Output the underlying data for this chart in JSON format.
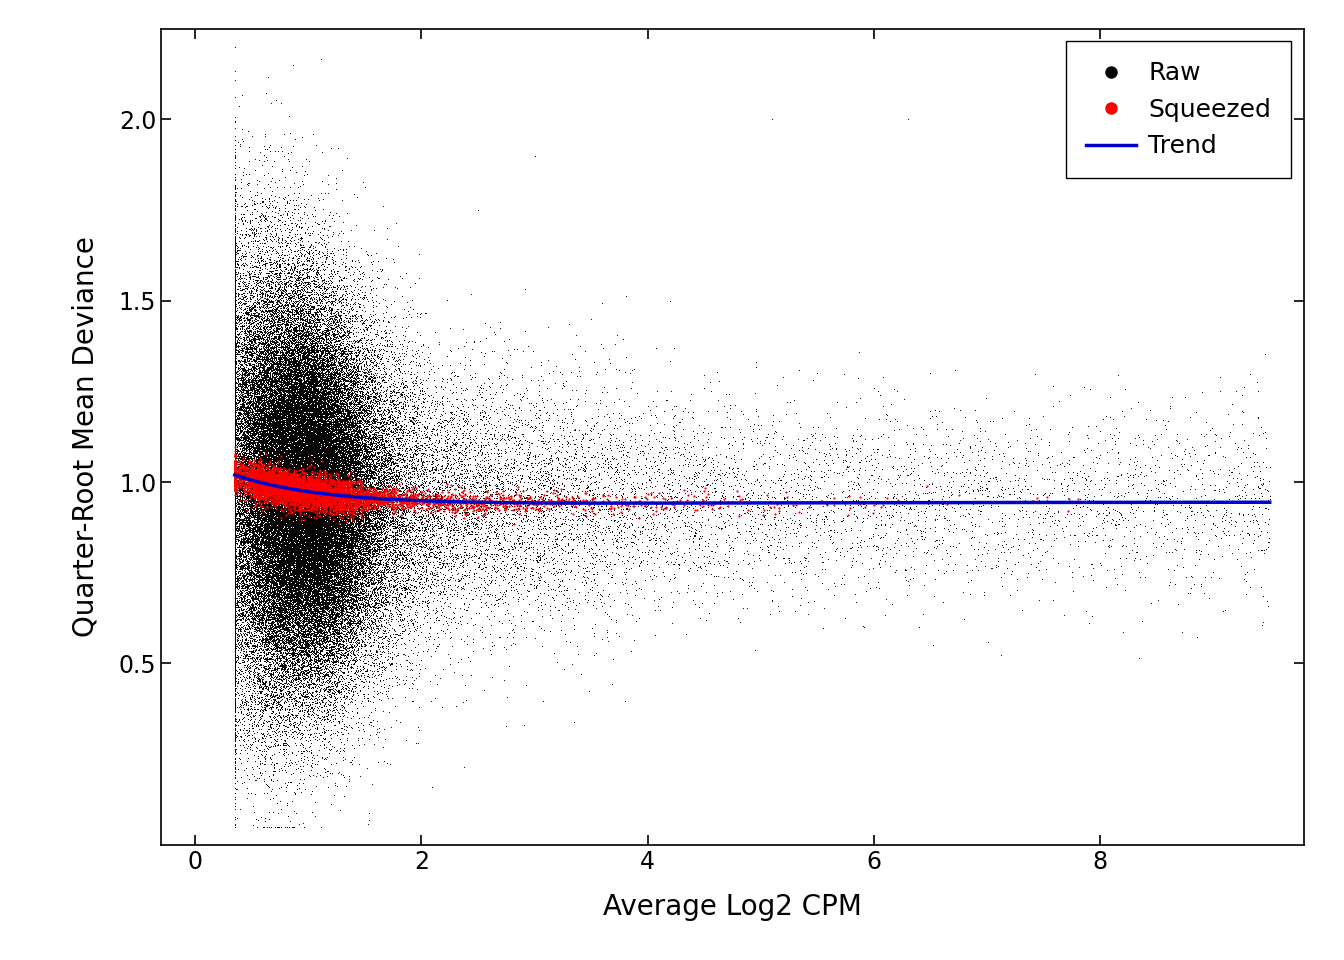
{
  "title": "",
  "xlabel": "Average Log2 CPM",
  "ylabel": "Quarter-Root Mean Deviance",
  "xlim": [
    -0.3,
    9.8
  ],
  "ylim": [
    0.0,
    2.25
  ],
  "xticks": [
    0,
    2,
    4,
    6,
    8
  ],
  "yticks": [
    0.5,
    1.0,
    1.5,
    2.0
  ],
  "background_color": "#ffffff",
  "raw_color": "#000000",
  "squeezed_color": "#ff0000",
  "trend_color": "#0000cc",
  "legend_labels": [
    "Raw",
    "Squeezed",
    "Trend"
  ],
  "raw_point_size": 0.5,
  "squeezed_point_size": 2.5,
  "trend_linewidth": 2.5,
  "seed": 42,
  "n_raw_very_dense": 80000,
  "n_raw_medium": 15000,
  "n_raw_sparse": 3000
}
